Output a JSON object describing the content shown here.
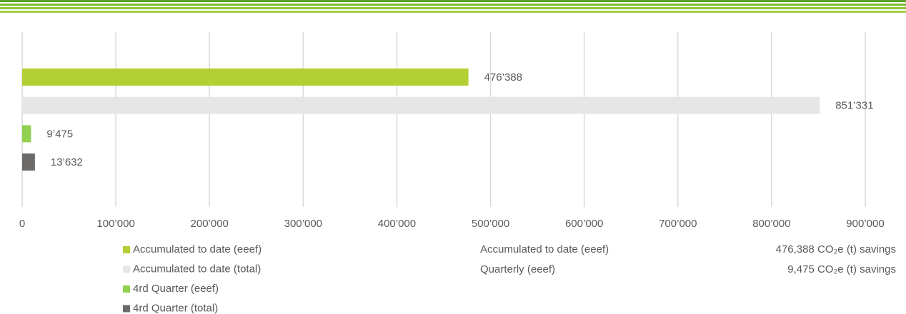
{
  "chart_data": {
    "type": "bar",
    "orientation": "horizontal",
    "series": [
      {
        "name": "Accumulated to date (eeef)",
        "color": "#b2cf33",
        "values": [
          476388
        ],
        "value_labels": [
          "476’388"
        ]
      },
      {
        "name": "Accumulated to date (total)",
        "color": "#e6e6e6",
        "values": [
          851331
        ],
        "value_labels": [
          "851’331"
        ]
      },
      {
        "name": "4rd Quarter (eeef)",
        "color": "#92d050",
        "values": [
          9475
        ],
        "value_labels": [
          "9’475"
        ]
      },
      {
        "name": "4rd Quarter (total)",
        "color": "#6d6a6a",
        "values": [
          13632
        ],
        "value_labels": [
          "13’632"
        ]
      }
    ],
    "xlim": [
      0,
      900000
    ],
    "xticks": [
      0,
      {
        "value": 100000,
        "label": "100’000"
      },
      {
        "value": 200000,
        "label": "200’000"
      },
      {
        "value": 300000,
        "label": "300’000"
      },
      {
        "value": 400000,
        "label": "400’000"
      },
      {
        "value": 500000,
        "label": "500’000"
      },
      {
        "value": 600000,
        "label": "600’000"
      },
      {
        "value": 700000,
        "label": "700’000"
      },
      {
        "value": 800000,
        "label": "800’000"
      },
      {
        "value": 900000,
        "label": "900’000"
      }
    ],
    "grid": true,
    "legend": "bottom-left"
  },
  "summary": [
    {
      "label": "Accumulated to date (eeef)",
      "value": "476,388 CO₂e (t) savings"
    },
    {
      "label": "Quarterly (eeef)",
      "value": "9,475 CO₂e (t) savings"
    }
  ]
}
